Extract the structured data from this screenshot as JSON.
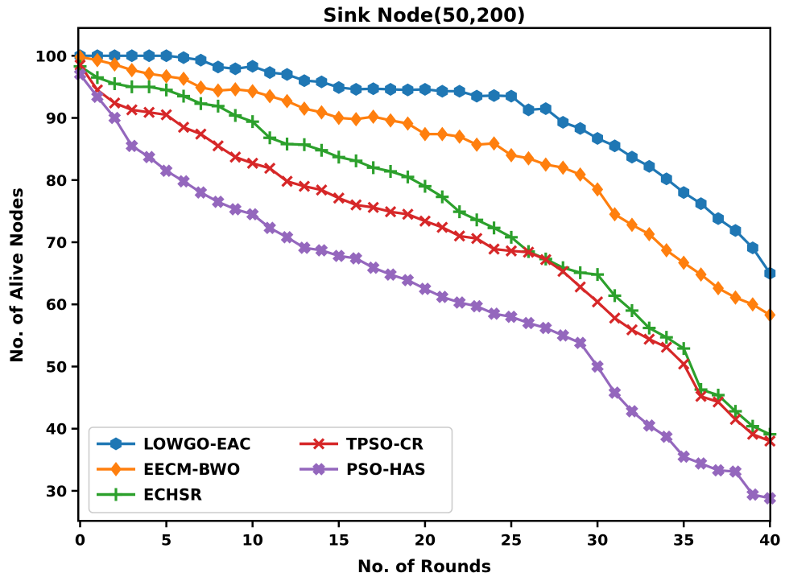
{
  "figure": {
    "title": "Sink Node(50,200)",
    "xlabel": "No. of Rounds",
    "ylabel": "No. of Alive Nodes"
  },
  "chart_data": {
    "type": "line",
    "title": "Sink Node(50,200)",
    "xlabel": "No. of Rounds",
    "ylabel": "No. of Alive Nodes",
    "x_start": 0,
    "x_step": 1,
    "xticks": [
      0,
      5,
      10,
      15,
      20,
      25,
      30,
      35,
      40
    ],
    "yticks": [
      30,
      40,
      50,
      60,
      70,
      80,
      90,
      100
    ],
    "xlim": [
      0,
      40
    ],
    "ylim": [
      25.3,
      104.4
    ],
    "grid": false,
    "background": "#ffffff",
    "legend_position": "lower-left",
    "legend_columns": 2,
    "series": [
      {
        "name": "LOWGO-EAC",
        "color": "#1f77b4",
        "marker": "hexagon",
        "values": [
          100,
          100,
          100,
          100,
          100,
          100,
          99.7,
          99.3,
          98.2,
          97.9,
          98.3,
          97.3,
          97,
          96,
          95.8,
          94.9,
          94.6,
          94.7,
          94.6,
          94.5,
          94.6,
          94.3,
          94.3,
          93.5,
          93.6,
          93.5,
          91.3,
          91.5,
          89.3,
          88.3,
          86.7,
          85.5,
          83.7,
          82.2,
          80.2,
          78,
          76.2,
          73.8,
          71.9,
          69.1,
          65
        ]
      },
      {
        "name": "EECM-BWO",
        "color": "#ff7f0e",
        "marker": "diamond",
        "values": [
          99.8,
          99.3,
          98.6,
          97.7,
          97.1,
          96.7,
          96.3,
          94.9,
          94.4,
          94.6,
          94.3,
          93.5,
          92.7,
          91.5,
          90.9,
          90,
          89.8,
          90.2,
          89.6,
          89.1,
          87.4,
          87.4,
          87,
          85.7,
          85.9,
          84,
          83.5,
          82.5,
          82,
          80.9,
          78.5,
          74.5,
          72.8,
          71.3,
          68.7,
          66.7,
          64.8,
          62.6,
          61.1,
          60,
          58.3
        ]
      },
      {
        "name": "ECHSR",
        "color": "#2ca02c",
        "marker": "plus",
        "values": [
          98.3,
          96.5,
          95.5,
          95,
          95,
          94.5,
          93.5,
          92.3,
          91.9,
          90.4,
          89.4,
          86.8,
          85.8,
          85.7,
          84.8,
          83.7,
          83.1,
          82,
          81.4,
          80.5,
          79,
          77.3,
          74.9,
          73.6,
          72.3,
          70.8,
          68.5,
          67.3,
          65.9,
          65.1,
          64.8,
          61.4,
          59,
          56.2,
          54.7,
          52.9,
          46.3,
          45.4,
          42.8,
          40.4,
          39.1
        ]
      },
      {
        "name": "TPSO-CR",
        "color": "#d62728",
        "marker": "x",
        "values": [
          98.5,
          94.5,
          92.4,
          91.3,
          90.9,
          90.5,
          88.5,
          87.4,
          85.5,
          83.7,
          82.7,
          81.9,
          79.8,
          79,
          78.4,
          77.1,
          76,
          75.6,
          74.9,
          74.5,
          73.4,
          72.4,
          71,
          70.6,
          68.9,
          68.6,
          68.4,
          67.2,
          65.3,
          62.8,
          60.4,
          57.8,
          55.9,
          54.4,
          53.1,
          50.4,
          45.2,
          44.3,
          41.5,
          39.1,
          38
        ]
      },
      {
        "name": "PSO-HAS",
        "color": "#9467bd",
        "marker": "thick-x",
        "values": [
          97,
          93.4,
          90,
          85.5,
          83.7,
          81.5,
          79.8,
          78,
          76.5,
          75.3,
          74.5,
          72.3,
          70.8,
          69.1,
          68.7,
          67.8,
          67.4,
          65.9,
          64.8,
          63.9,
          62.5,
          61.2,
          60.3,
          59.7,
          58.5,
          58,
          57,
          56.2,
          55,
          53.8,
          50,
          45.8,
          42.8,
          40.5,
          38.7,
          35.5,
          34.4,
          33.3,
          33.1,
          29.4,
          28.8
        ]
      }
    ]
  }
}
